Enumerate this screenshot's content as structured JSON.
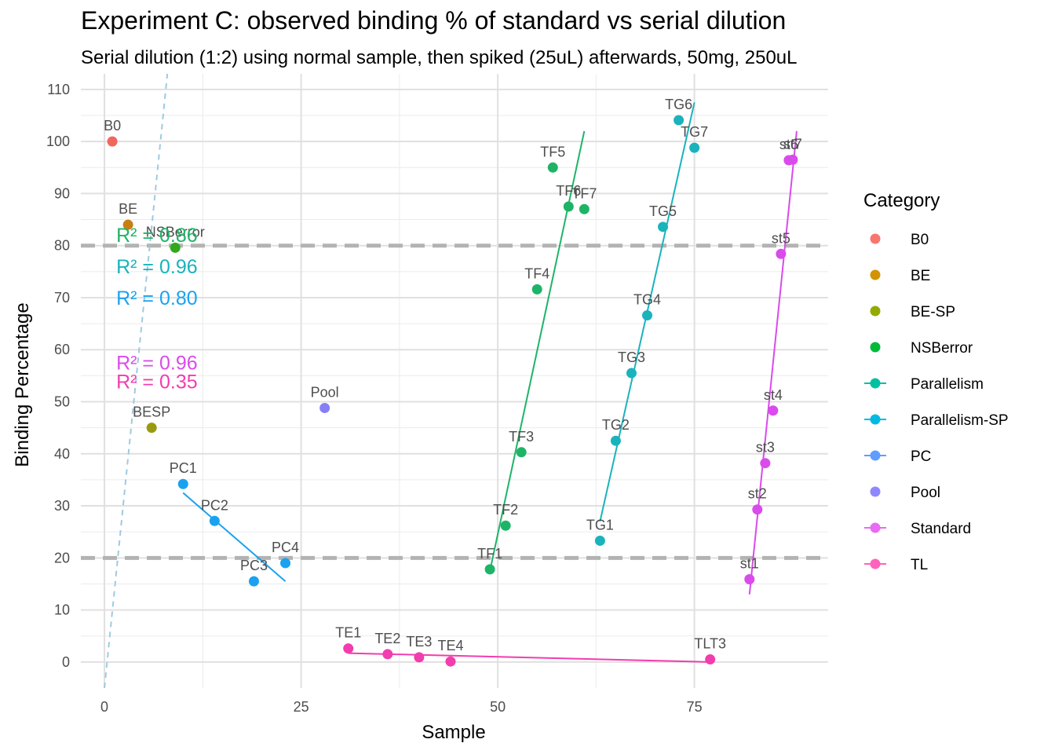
{
  "chart_data": {
    "type": "scatter",
    "title": "Experiment C: observed binding % of standard vs serial dilution",
    "subtitle": "Serial dilution (1:2) using normal sample, then spiked (25uL) afterwards, 50mg, 250uL",
    "xlabel": "Sample",
    "ylabel": "Binding Percentage",
    "xlim": [
      -3,
      92
    ],
    "ylim": [
      -5,
      113
    ],
    "x_ticks": [
      0,
      25,
      50,
      75
    ],
    "y_ticks": [
      0,
      10,
      20,
      30,
      40,
      50,
      60,
      70,
      80,
      90,
      100,
      110
    ],
    "grid": true,
    "legend": {
      "title": "Category",
      "position": "right"
    },
    "reference_lines": [
      {
        "y": 80,
        "style": "dashed",
        "color": "#b3b3b3"
      },
      {
        "y": 20,
        "style": "dashed",
        "color": "#b3b3b3"
      }
    ],
    "trend_line_dotted": {
      "color": "#9ecae1",
      "from": [
        0,
        -5
      ],
      "to": [
        8,
        113
      ]
    },
    "categories": [
      {
        "name": "B0",
        "color": "#F8766D",
        "legend_type": "point"
      },
      {
        "name": "BE",
        "color": "#D39200",
        "legend_type": "point"
      },
      {
        "name": "BE-SP",
        "color": "#93AA00",
        "legend_type": "point"
      },
      {
        "name": "NSBerror",
        "color": "#00BA38",
        "legend_type": "point"
      },
      {
        "name": "Parallelism",
        "color": "#00C19F",
        "legend_type": "line"
      },
      {
        "name": "Parallelism-SP",
        "color": "#00B9E3",
        "legend_type": "line"
      },
      {
        "name": "PC",
        "color": "#619CFF",
        "legend_type": "line"
      },
      {
        "name": "Pool",
        "color": "#8F87FF",
        "legend_type": "point"
      },
      {
        "name": "Standard",
        "color": "#E76BF3",
        "legend_type": "line"
      },
      {
        "name": "TL",
        "color": "#FF62BC",
        "legend_type": "line"
      }
    ],
    "points": [
      {
        "label": "B0",
        "category": "B0",
        "color": "#F0675E",
        "x": 1,
        "y": 100
      },
      {
        "label": "BE",
        "category": "BE",
        "color": "#C97E12",
        "x": 3,
        "y": 84
      },
      {
        "label": "BESP",
        "category": "BE-SP",
        "color": "#999A12",
        "x": 6,
        "y": 45
      },
      {
        "label": "NSBerror",
        "category": "NSBerror",
        "color": "#32A91D",
        "x": 9,
        "y": 79.6
      },
      {
        "label": "PC1",
        "category": "PC",
        "color": "#1AA2F0",
        "x": 10,
        "y": 34.2
      },
      {
        "label": "PC2",
        "category": "PC",
        "color": "#1AA2F0",
        "x": 14,
        "y": 27.1
      },
      {
        "label": "PC3",
        "category": "PC",
        "color": "#1AA2F0",
        "x": 19,
        "y": 15.5
      },
      {
        "label": "PC4",
        "category": "PC",
        "color": "#1AA2F0",
        "x": 23,
        "y": 19
      },
      {
        "label": "Pool",
        "category": "Pool",
        "color": "#857FF7",
        "x": 28,
        "y": 48.8
      },
      {
        "label": "TE1",
        "category": "TL",
        "color": "#F23DAE",
        "x": 31,
        "y": 2.6
      },
      {
        "label": "TE2",
        "category": "TL",
        "color": "#F23DAE",
        "x": 36,
        "y": 1.5
      },
      {
        "label": "TE3",
        "category": "TL",
        "color": "#F23DAE",
        "x": 40,
        "y": 0.9
      },
      {
        "label": "TE4",
        "category": "TL",
        "color": "#F23DAE",
        "x": 44,
        "y": 0.1
      },
      {
        "label": "TLT3",
        "category": "TL",
        "color": "#F23DAE",
        "x": 77,
        "y": 0.5
      },
      {
        "label": "TF1",
        "category": "Parallelism",
        "color": "#1EB468",
        "x": 49,
        "y": 17.8
      },
      {
        "label": "TF2",
        "category": "Parallelism",
        "color": "#1EB468",
        "x": 51,
        "y": 26.2
      },
      {
        "label": "TF3",
        "category": "Parallelism",
        "color": "#1EB468",
        "x": 53,
        "y": 40.3
      },
      {
        "label": "TF4",
        "category": "Parallelism",
        "color": "#1EB468",
        "x": 55,
        "y": 71.6
      },
      {
        "label": "TF5",
        "category": "Parallelism",
        "color": "#1EB468",
        "x": 57,
        "y": 95
      },
      {
        "label": "TF6",
        "category": "Parallelism",
        "color": "#1EB468",
        "x": 59,
        "y": 87.5
      },
      {
        "label": "TF7",
        "category": "Parallelism",
        "color": "#1EB468",
        "x": 61,
        "y": 87
      },
      {
        "label": "TG1",
        "category": "Parallelism-SP",
        "color": "#1AB3BC",
        "x": 63,
        "y": 23.3
      },
      {
        "label": "TG2",
        "category": "Parallelism-SP",
        "color": "#1AB3BC",
        "x": 65,
        "y": 42.5
      },
      {
        "label": "TG3",
        "category": "Parallelism-SP",
        "color": "#1AB3BC",
        "x": 67,
        "y": 55.5
      },
      {
        "label": "TG4",
        "category": "Parallelism-SP",
        "color": "#1AB3BC",
        "x": 69,
        "y": 66.6
      },
      {
        "label": "TG5",
        "category": "Parallelism-SP",
        "color": "#1AB3BC",
        "x": 71,
        "y": 83.6
      },
      {
        "label": "TG6",
        "category": "Parallelism-SP",
        "color": "#1AB3BC",
        "x": 73,
        "y": 104.1
      },
      {
        "label": "TG7",
        "category": "Parallelism-SP",
        "color": "#1AB3BC",
        "x": 75,
        "y": 98.8
      },
      {
        "label": "st1",
        "category": "Standard",
        "color": "#D94BEB",
        "x": 82,
        "y": 15.9
      },
      {
        "label": "st2",
        "category": "Standard",
        "color": "#D94BEB",
        "x": 83,
        "y": 29.3
      },
      {
        "label": "st3",
        "category": "Standard",
        "color": "#D94BEB",
        "x": 84,
        "y": 38.2
      },
      {
        "label": "st4",
        "category": "Standard",
        "color": "#D94BEB",
        "x": 85,
        "y": 48.3
      },
      {
        "label": "st5",
        "category": "Standard",
        "color": "#D94BEB",
        "x": 86,
        "y": 78.4
      },
      {
        "label": "st6",
        "category": "Standard",
        "color": "#D94BEB",
        "x": 87,
        "y": 96.4
      },
      {
        "label": "st7",
        "category": "Standard",
        "color": "#D94BEB",
        "x": 87.5,
        "y": 96.5
      }
    ],
    "fit_lines": [
      {
        "category": "Parallelism",
        "color": "#1EB468",
        "from": [
          49,
          17.5
        ],
        "to": [
          61,
          102
        ]
      },
      {
        "category": "Parallelism-SP",
        "color": "#1AB3BC",
        "from": [
          63,
          27
        ],
        "to": [
          75,
          107.5
        ]
      },
      {
        "category": "PC",
        "color": "#1AA2F0",
        "from": [
          10,
          32.5
        ],
        "to": [
          23,
          15.5
        ]
      },
      {
        "category": "TL",
        "color": "#F23DAE",
        "from": [
          31,
          1.7
        ],
        "to": [
          77,
          0
        ]
      },
      {
        "category": "Standard",
        "color": "#D94BEB",
        "from": [
          82,
          13
        ],
        "to": [
          88,
          102
        ]
      }
    ],
    "r_squared": [
      {
        "label": "R² = 0.86",
        "color": "#1EB468",
        "x": 1.5,
        "y": 80.7
      },
      {
        "label": "R² = 0.96",
        "color": "#1AB3BC",
        "x": 1.5,
        "y": 74.7
      },
      {
        "label": "R² = 0.80",
        "color": "#1AA2F0",
        "x": 1.5,
        "y": 68.6
      },
      {
        "label": "R² = 0.96",
        "color": "#D94BEB",
        "x": 1.5,
        "y": 56.2
      },
      {
        "label": "R² = 0.35",
        "color": "#F23DAE",
        "x": 1.5,
        "y": 52.6
      }
    ]
  }
}
